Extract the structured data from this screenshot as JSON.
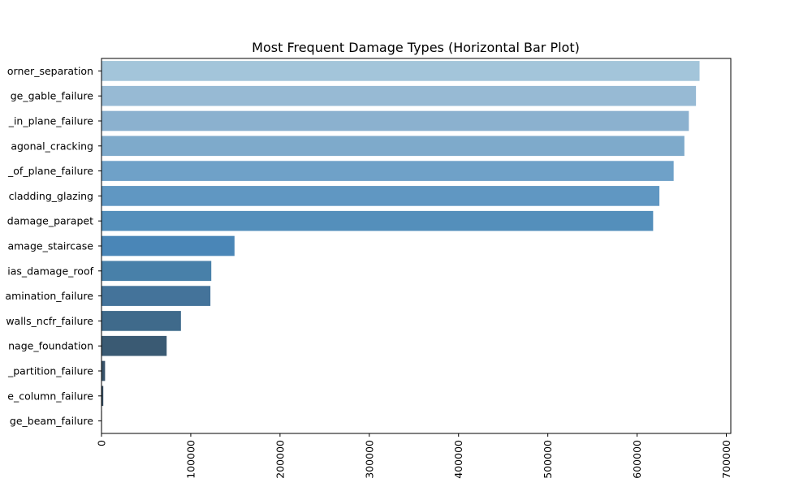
{
  "chart_data": {
    "type": "bar",
    "orientation": "horizontal",
    "title": "Most Frequent Damage Types (Horizontal Bar Plot)",
    "xlabel": "",
    "ylabel": "",
    "xlim": [
      0,
      705000
    ],
    "xticks": [
      0,
      100000,
      200000,
      300000,
      400000,
      500000,
      600000,
      700000
    ],
    "xtick_labels": [
      "0",
      "100000",
      "200000",
      "300000",
      "400000",
      "500000",
      "600000",
      "700000"
    ],
    "grid": false,
    "categories": [
      "orner_separation",
      "ge_gable_failure",
      "_in_plane_failure",
      "agonal_cracking",
      "_of_plane_failure",
      "cladding_glazing",
      "damage_parapet",
      "amage_staircase",
      "ias_damage_roof",
      "amination_failure",
      "walls_ncfr_failure",
      "nage_foundation",
      "_partition_failure",
      "e_column_failure",
      "ge_beam_failure"
    ],
    "values": [
      670000,
      666000,
      658000,
      653000,
      641000,
      625000,
      618000,
      149000,
      123000,
      122000,
      89000,
      73000,
      4000,
      2000,
      500
    ],
    "colors": [
      "#a3c5da",
      "#97bad4",
      "#8bb1cf",
      "#7eaacb",
      "#6fa1c8",
      "#6097c2",
      "#548fbb",
      "#4a86b7",
      "#4880a9",
      "#44739a",
      "#3f6a8b",
      "#3a5a73",
      "#38536a",
      "#354b5f",
      "#334657"
    ]
  }
}
